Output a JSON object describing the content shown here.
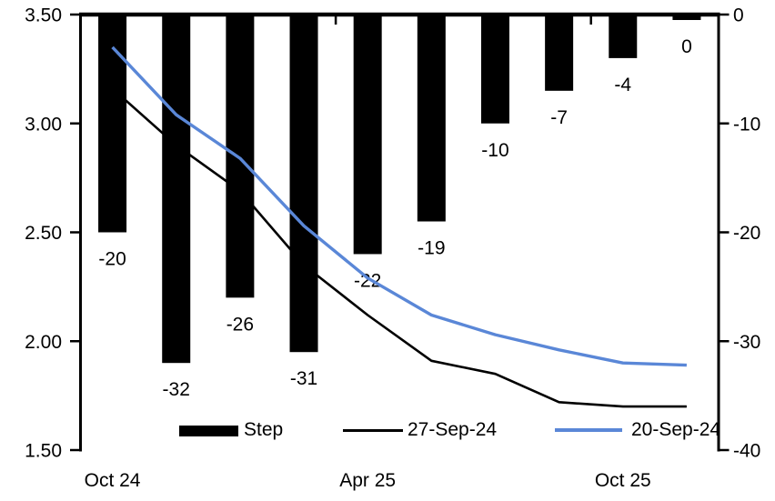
{
  "chart_data": {
    "type": "combo-bar-line",
    "title": "",
    "plot": {
      "background": "#ffffff",
      "grid": false,
      "bar_color": "#000000",
      "line1_color": "#000000",
      "line2_color": "#5A87D7"
    },
    "left_axis": {
      "side": "left",
      "min": 1.5,
      "max": 3.5,
      "ticks": [
        "3.50",
        "3.00",
        "2.50",
        "2.00",
        "1.50"
      ]
    },
    "right_axis": {
      "side": "right",
      "min": -40,
      "max": 0,
      "ticks": [
        "0",
        "-10",
        "-20",
        "-30",
        "-40"
      ]
    },
    "x_axis": {
      "labels": [
        {
          "text": "Oct 24",
          "slot": 0
        },
        {
          "text": "Apr 25",
          "slot": 4
        },
        {
          "text": "Oct 25",
          "slot": 8
        }
      ],
      "boundary_tick_slots": [
        4,
        8
      ]
    },
    "bars": {
      "name": "Step",
      "axis": "right",
      "color": "#000000",
      "values": [
        -20,
        -32,
        -26,
        -31,
        -22,
        -19,
        -10,
        -7,
        -4,
        0
      ],
      "labels": [
        "-20",
        "-32",
        "-26",
        "-31",
        "-22",
        "-19",
        "-10",
        "-7",
        "-4",
        "0"
      ]
    },
    "lines": [
      {
        "name": "27-Sep-24",
        "axis": "left",
        "color": "#000000",
        "width": 2.6,
        "values": [
          3.16,
          2.9,
          2.69,
          2.35,
          2.12,
          1.91,
          1.85,
          1.72,
          1.7,
          1.7
        ]
      },
      {
        "name": "20-Sep-24",
        "axis": "left",
        "color": "#5A87D7",
        "width": 3.4,
        "values": [
          3.35,
          3.04,
          2.84,
          2.53,
          2.29,
          2.12,
          2.03,
          1.96,
          1.9,
          1.89
        ]
      }
    ],
    "legend": {
      "bar_label": "Step",
      "line1_label": "27-Sep-24",
      "line2_label": "20-Sep-24"
    }
  }
}
